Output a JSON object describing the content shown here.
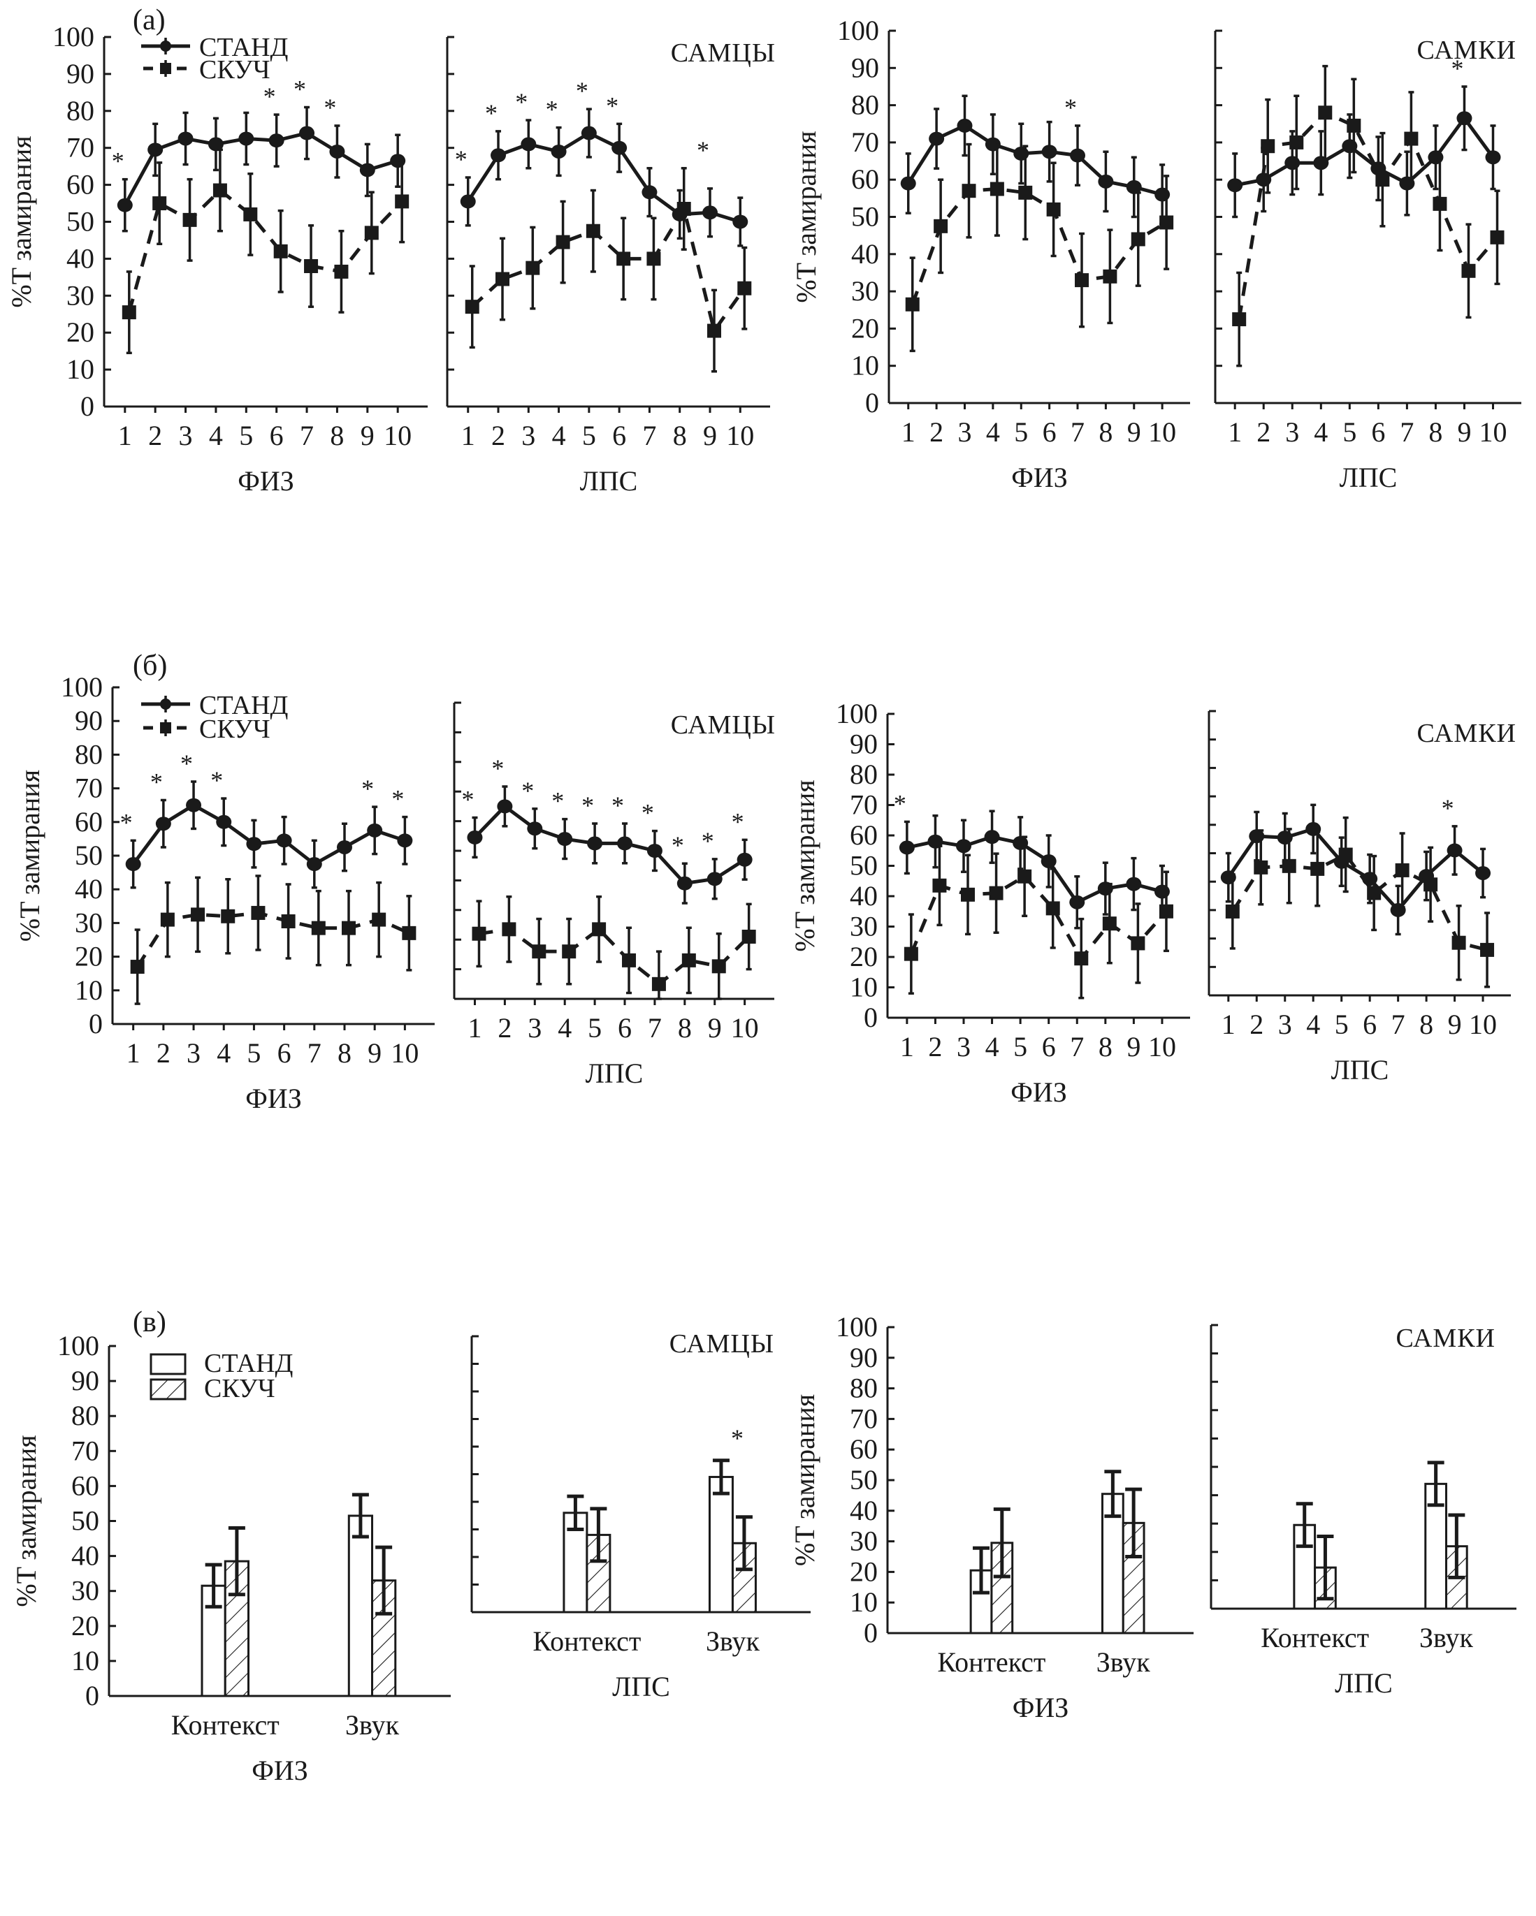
{
  "figure": {
    "ylabel": "%T замирания",
    "legend": {
      "line": [
        {
          "name": "СТАНД",
          "style": "solid-circle"
        },
        {
          "name": "СКУЧ",
          "style": "dashed-square"
        }
      ],
      "bar": [
        {
          "name": "СТАНД",
          "style": "open"
        },
        {
          "name": "СКУЧ",
          "style": "hatched"
        }
      ]
    },
    "significance_marker": "*",
    "rows": [
      {
        "letter": "(a)",
        "males_label": "САМЦЫ",
        "females_label": "САМКИ"
      },
      {
        "letter": "(б)",
        "males_label": "САМЦЫ",
        "females_label": "САМКИ"
      },
      {
        "letter": "(в)",
        "males_label": "САМЦЫ",
        "females_label": "САМКИ"
      }
    ]
  },
  "chart_data": [
    {
      "id": "a-males-fiz",
      "row": 0,
      "type": "line",
      "sex": "САМЦЫ",
      "xlabel": "ФИЗ",
      "ylabel": "%T замирания",
      "ylim": [
        0,
        100
      ],
      "yticks": [
        0,
        10,
        20,
        30,
        40,
        50,
        60,
        70,
        80,
        90,
        100
      ],
      "x": [
        1,
        2,
        3,
        4,
        5,
        6,
        7,
        8,
        9,
        10
      ],
      "series": [
        {
          "name": "СТАНД",
          "values": [
            54.5,
            69.5,
            72.5,
            71,
            72.5,
            72,
            74,
            69,
            64,
            66.5
          ],
          "err": [
            7,
            7,
            7,
            7,
            7,
            7,
            7,
            7,
            7,
            7
          ]
        },
        {
          "name": "СКУЧ",
          "values": [
            25.5,
            55,
            50.5,
            58.5,
            52,
            42,
            38,
            36.5,
            47,
            55.5
          ],
          "err": [
            11,
            11,
            11,
            11,
            11,
            11,
            11,
            11,
            11,
            11
          ]
        }
      ],
      "significant": [
        1,
        6,
        7,
        8
      ]
    },
    {
      "id": "a-males-lps",
      "row": 0,
      "type": "line",
      "sex": "САМЦЫ",
      "xlabel": "ЛПС",
      "ylabel": "%T замирания",
      "ylim": [
        0,
        100
      ],
      "yticks": [
        0,
        10,
        20,
        30,
        40,
        50,
        60,
        70,
        80,
        90,
        100
      ],
      "x": [
        1,
        2,
        3,
        4,
        5,
        6,
        7,
        8,
        9,
        10
      ],
      "series": [
        {
          "name": "СТАНД",
          "values": [
            55.5,
            68,
            71,
            69,
            74,
            70,
            58,
            52,
            52.5,
            50
          ],
          "err": [
            6.5,
            6.5,
            6.5,
            6.5,
            6.5,
            6.5,
            6.5,
            6.5,
            6.5,
            6.5
          ]
        },
        {
          "name": "СКУЧ",
          "values": [
            27,
            34.5,
            37.5,
            44.5,
            47.5,
            40,
            40,
            53.5,
            20.5,
            32
          ],
          "err": [
            11,
            11,
            11,
            11,
            11,
            11,
            11,
            11,
            11,
            11
          ]
        }
      ],
      "significant": [
        1,
        2,
        3,
        4,
        5,
        6,
        9
      ]
    },
    {
      "id": "a-females-fiz",
      "row": 0,
      "type": "line",
      "sex": "САМКИ",
      "xlabel": "ФИЗ",
      "ylabel": "%T замирания",
      "ylim": [
        0,
        100
      ],
      "yticks": [
        0,
        10,
        20,
        30,
        40,
        50,
        60,
        70,
        80,
        90,
        100
      ],
      "x": [
        1,
        2,
        3,
        4,
        5,
        6,
        7,
        8,
        9,
        10
      ],
      "series": [
        {
          "name": "СТАНД",
          "values": [
            59,
            71,
            74.5,
            69.5,
            67,
            67.5,
            66.5,
            59.5,
            58,
            56
          ],
          "err": [
            8,
            8,
            8,
            8,
            8,
            8,
            8,
            8,
            8,
            8
          ]
        },
        {
          "name": "СКУЧ",
          "values": [
            26.5,
            47.5,
            57,
            57.5,
            56.5,
            52,
            33,
            34,
            44,
            48.5
          ],
          "err": [
            12.5,
            12.5,
            12.5,
            12.5,
            12.5,
            12.5,
            12.5,
            12.5,
            12.5,
            12.5
          ]
        }
      ],
      "significant": [
        7
      ]
    },
    {
      "id": "a-females-lps",
      "row": 0,
      "type": "line",
      "sex": "САМКИ",
      "xlabel": "ЛПС",
      "ylabel": "%T замирания",
      "ylim": [
        0,
        100
      ],
      "yticks": [
        0,
        10,
        20,
        30,
        40,
        50,
        60,
        70,
        80,
        90,
        100
      ],
      "x": [
        1,
        2,
        3,
        4,
        5,
        6,
        7,
        8,
        9,
        10
      ],
      "series": [
        {
          "name": "СТАНД",
          "values": [
            58.5,
            60,
            64.5,
            64.5,
            69,
            63,
            59,
            66,
            76.5,
            66
          ],
          "err": [
            8.5,
            8.5,
            8.5,
            8.5,
            8.5,
            8.5,
            8.5,
            8.5,
            8.5,
            8.5
          ]
        },
        {
          "name": "СКУЧ",
          "values": [
            22.5,
            69,
            70,
            78,
            74.5,
            60,
            71,
            53.5,
            35.5,
            44.5
          ],
          "err": [
            12.5,
            12.5,
            12.5,
            12.5,
            12.5,
            12.5,
            12.5,
            12.5,
            12.5,
            12.5
          ]
        }
      ],
      "significant": [
        9
      ]
    },
    {
      "id": "b-males-fiz",
      "row": 1,
      "type": "line",
      "sex": "САМЦЫ",
      "xlabel": "ФИЗ",
      "ylabel": "%T замирания",
      "ylim": [
        0,
        100
      ],
      "yticks": [
        0,
        10,
        20,
        30,
        40,
        50,
        60,
        70,
        80,
        90,
        100
      ],
      "x": [
        1,
        2,
        3,
        4,
        5,
        6,
        7,
        8,
        9,
        10
      ],
      "series": [
        {
          "name": "СТАНД",
          "values": [
            47.5,
            59.5,
            65,
            60,
            53.5,
            54.5,
            47.5,
            52.5,
            57.5,
            54.5
          ],
          "err": [
            7,
            7,
            7,
            7,
            7,
            7,
            7,
            7,
            7,
            7
          ]
        },
        {
          "name": "СКУЧ",
          "values": [
            17,
            31,
            32.5,
            32,
            33,
            30.5,
            28.5,
            28.5,
            31,
            27
          ],
          "err": [
            11,
            11,
            11,
            11,
            11,
            11,
            11,
            11,
            11,
            11
          ]
        }
      ],
      "significant": [
        1,
        2,
        3,
        4,
        9,
        10
      ]
    },
    {
      "id": "b-males-lps",
      "row": 1,
      "type": "line",
      "sex": "САМЦЫ",
      "xlabel": "ЛПС",
      "ylabel": "%T замирания",
      "ylim": [
        0,
        100
      ],
      "yticks": [
        0,
        10,
        20,
        30,
        40,
        50,
        60,
        70,
        80,
        90,
        100
      ],
      "x": [
        1,
        2,
        3,
        4,
        5,
        6,
        7,
        8,
        9,
        10
      ],
      "series": [
        {
          "name": "СТАНД",
          "values": [
            54.5,
            65,
            57.5,
            54,
            52.5,
            52.5,
            50,
            39,
            40.5,
            47
          ],
          "err": [
            6.7,
            6.7,
            6.7,
            6.7,
            6.7,
            6.7,
            6.7,
            6.7,
            6.7,
            6.7
          ]
        },
        {
          "name": "СКУЧ",
          "values": [
            22,
            23.5,
            16,
            16,
            23.5,
            13,
            5,
            13,
            11,
            21
          ],
          "err": [
            11,
            11,
            11,
            11,
            11,
            11,
            11,
            11,
            11,
            11
          ]
        }
      ],
      "significant": [
        1,
        2,
        3,
        4,
        5,
        6,
        7,
        8,
        9,
        10
      ]
    },
    {
      "id": "b-females-fiz",
      "row": 1,
      "type": "line",
      "sex": "САМКИ",
      "xlabel": "ФИЗ",
      "ylabel": "%T замирания",
      "ylim": [
        0,
        100
      ],
      "yticks": [
        0,
        10,
        20,
        30,
        40,
        50,
        60,
        70,
        80,
        90,
        100
      ],
      "x": [
        1,
        2,
        3,
        4,
        5,
        6,
        7,
        8,
        9,
        10
      ],
      "series": [
        {
          "name": "СТАНД",
          "values": [
            56,
            58,
            56.5,
            59.5,
            57.5,
            51.5,
            38,
            42.5,
            44,
            41.5
          ],
          "err": [
            8.5,
            8.5,
            8.5,
            8.5,
            8.5,
            8.5,
            8.5,
            8.5,
            8.5,
            8.5
          ]
        },
        {
          "name": "СКУЧ",
          "values": [
            21,
            43.5,
            40.5,
            41,
            46.5,
            36,
            19.5,
            31,
            24.5,
            35
          ],
          "err": [
            13,
            13,
            13,
            13,
            13,
            13,
            13,
            13,
            13,
            13
          ]
        }
      ],
      "significant": [
        1
      ]
    },
    {
      "id": "b-females-lps",
      "row": 1,
      "type": "line",
      "sex": "САМКИ",
      "xlabel": "ЛПС",
      "ylabel": "%T замирания",
      "ylim": [
        0,
        100
      ],
      "yticks": [
        0,
        10,
        20,
        30,
        40,
        50,
        60,
        70,
        80,
        90,
        100
      ],
      "x": [
        1,
        2,
        3,
        4,
        5,
        6,
        7,
        8,
        9,
        10
      ],
      "series": [
        {
          "name": "СТАНД",
          "values": [
            41.5,
            56,
            55.5,
            58.5,
            47,
            41,
            30,
            42,
            51,
            43
          ],
          "err": [
            8.5,
            8.5,
            8.5,
            8.5,
            8.5,
            8.5,
            8.5,
            8.5,
            8.5,
            8.5
          ]
        },
        {
          "name": "СКУЧ",
          "values": [
            29.5,
            45,
            45.5,
            44.5,
            49.5,
            36,
            44,
            39,
            18.5,
            16
          ],
          "err": [
            13,
            13,
            13,
            13,
            13,
            13,
            13,
            13,
            13,
            13
          ]
        }
      ],
      "significant": [
        9
      ]
    },
    {
      "id": "c-males-fiz",
      "row": 2,
      "type": "bar",
      "sex": "САМЦЫ",
      "xlabel": "ФИЗ",
      "ylabel": "%T замирания",
      "ylim": [
        0,
        100
      ],
      "yticks": [
        0,
        10,
        20,
        30,
        40,
        50,
        60,
        70,
        80,
        90,
        100
      ],
      "categories": [
        "Контекст",
        "Звук"
      ],
      "series": [
        {
          "name": "СТАНД",
          "values": [
            31.5,
            51.5
          ],
          "err": [
            6,
            6
          ]
        },
        {
          "name": "СКУЧ",
          "values": [
            38.5,
            33
          ],
          "err": [
            9.5,
            9.5
          ]
        }
      ],
      "significant": []
    },
    {
      "id": "c-males-lps",
      "row": 2,
      "type": "bar",
      "sex": "САМЦЫ",
      "xlabel": "ЛПС",
      "ylabel": "%T замирания",
      "ylim": [
        0,
        100
      ],
      "yticks": [
        0,
        10,
        20,
        30,
        40,
        50,
        60,
        70,
        80,
        90,
        100
      ],
      "categories": [
        "Контекст",
        "Звук"
      ],
      "series": [
        {
          "name": "СТАНД",
          "values": [
            36,
            49
          ],
          "err": [
            6,
            6
          ]
        },
        {
          "name": "СКУЧ",
          "values": [
            28,
            25
          ],
          "err": [
            9.5,
            9.5
          ]
        }
      ],
      "significant": [
        2
      ]
    },
    {
      "id": "c-females-fiz",
      "row": 2,
      "type": "bar",
      "sex": "САМКИ",
      "xlabel": "ФИЗ",
      "ylabel": "%T замирания",
      "ylim": [
        0,
        100
      ],
      "yticks": [
        0,
        10,
        20,
        30,
        40,
        50,
        60,
        70,
        80,
        90,
        100
      ],
      "categories": [
        "Контекст",
        "Звук"
      ],
      "series": [
        {
          "name": "СТАНД",
          "values": [
            20.5,
            45.5
          ],
          "err": [
            7.3,
            7.3
          ]
        },
        {
          "name": "СКУЧ",
          "values": [
            29.5,
            36
          ],
          "err": [
            11,
            11
          ]
        }
      ],
      "significant": []
    },
    {
      "id": "c-females-lps",
      "row": 2,
      "type": "bar",
      "sex": "САМКИ",
      "xlabel": "ЛПС",
      "ylabel": "%T замирания",
      "ylim": [
        0,
        100
      ],
      "yticks": [
        0,
        10,
        20,
        30,
        40,
        50,
        60,
        70,
        80,
        90,
        100
      ],
      "categories": [
        "Контекст",
        "Звук"
      ],
      "series": [
        {
          "name": "СТАНД",
          "values": [
            29.5,
            44
          ],
          "err": [
            7.5,
            7.5
          ]
        },
        {
          "name": "СКУЧ",
          "values": [
            14.5,
            22
          ],
          "err": [
            11,
            11
          ]
        }
      ],
      "significant": []
    }
  ]
}
